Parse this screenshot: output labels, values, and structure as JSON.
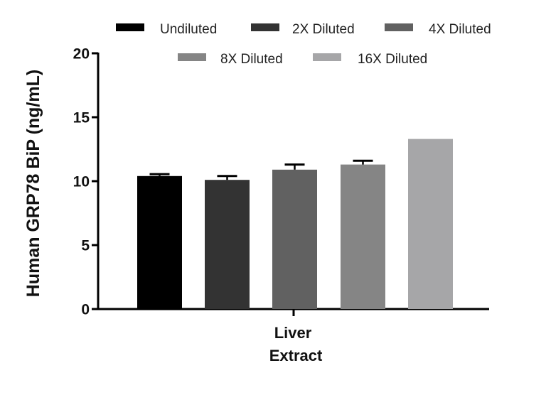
{
  "chart_data": {
    "type": "bar",
    "ylabel": "Human GRP78 BiP (ng/mL)",
    "category_label_lines": [
      "Liver",
      "Extract"
    ],
    "ylim": [
      0,
      20
    ],
    "yticks": [
      0,
      5,
      10,
      15,
      20
    ],
    "grid": false,
    "legend_position": "top",
    "series": [
      {
        "name": "Undiluted",
        "value": 10.4,
        "error": 0.15,
        "color": "#000000"
      },
      {
        "name": "2X Diluted",
        "value": 10.1,
        "error": 0.3,
        "color": "#333333"
      },
      {
        "name": "4X Diluted",
        "value": 10.9,
        "error": 0.4,
        "color": "#616161"
      },
      {
        "name": "8X Diluted",
        "value": 11.3,
        "error": 0.3,
        "color": "#858585"
      },
      {
        "name": "16X Diluted",
        "value": 13.3,
        "error": 0,
        "color": "#a6a6a8"
      }
    ]
  }
}
